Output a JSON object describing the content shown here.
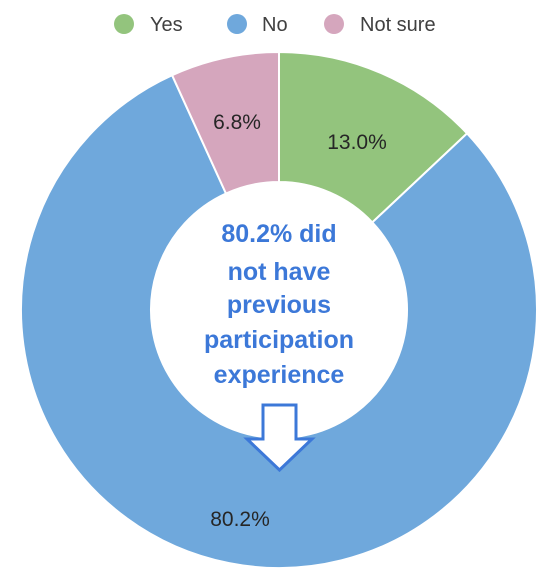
{
  "chart_data": {
    "type": "pie",
    "variant": "donut",
    "categories": [
      "Yes",
      "No",
      "Not sure"
    ],
    "values": [
      13.0,
      80.2,
      6.8
    ],
    "labels": [
      "13.0%",
      "80.2%",
      "6.8%"
    ],
    "colors": [
      "#93c47d",
      "#6fa8dc",
      "#d5a6bd"
    ],
    "legend": {
      "position": "top",
      "entries": [
        "Yes",
        "No",
        "Not sure"
      ]
    },
    "annotation": {
      "lines": [
        "80.2% did",
        "not have",
        "previous",
        "participation",
        "experience"
      ],
      "color": "#3c78d8"
    }
  }
}
